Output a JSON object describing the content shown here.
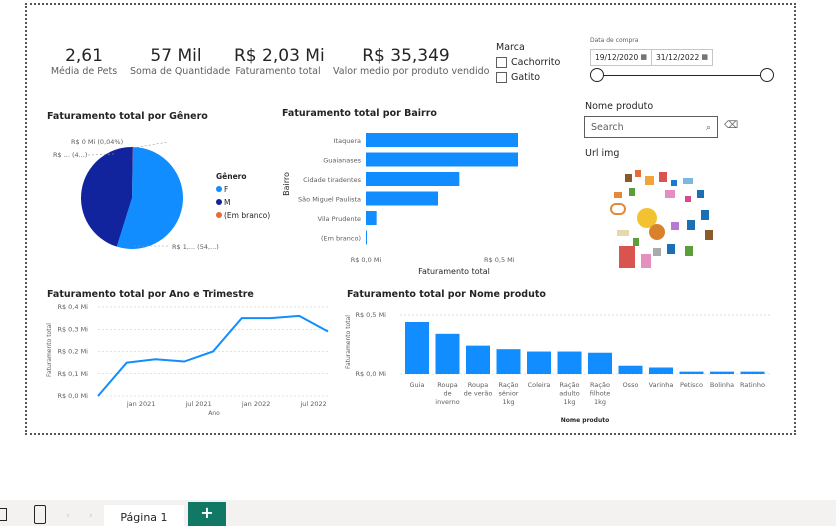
{
  "kpis": [
    {
      "value": "2,61",
      "label": "Média de Pets"
    },
    {
      "value": "57 Mil",
      "label": "Soma de Quantidade"
    },
    {
      "value": "R$ 2,03 Mi",
      "label": "Faturamento total"
    },
    {
      "value": "R$ 35,349",
      "label": "Valor medio por produto vendido"
    }
  ],
  "marca": {
    "title": "Marca",
    "options": [
      "Cachorrito",
      "Gatito"
    ]
  },
  "date_filter": {
    "label": "Data de compra",
    "start": "19/12/2020",
    "end": "31/12/2022"
  },
  "produto_filter": {
    "title": "Nome produto",
    "placeholder": "Search"
  },
  "url_img": {
    "title": "Url img"
  },
  "pie": {
    "title": "Faturamento total por Gênero",
    "legend_title": "Gênero",
    "labels": {
      "top": "R$ 0 Mi (0,04%)",
      "left": "R$ ... (4...)",
      "right": "R$ 1,... (54,...)"
    }
  },
  "bairro": {
    "title": "Faturamento total por Bairro",
    "ylabel": "Bairro",
    "xlabel": "Faturamento total"
  },
  "trimestre": {
    "title": "Faturamento total por Ano e Trimestre",
    "ylabel": "Faturamento total",
    "xlabel": "Ano"
  },
  "produto_chart": {
    "title": "Faturamento total por Nome produto",
    "ylabel": "Faturamento total",
    "xlabel": "Nome produto"
  },
  "bottom": {
    "page_tab": "Página 1",
    "add": "+"
  },
  "chart_data": [
    {
      "type": "pie",
      "title": "Faturamento total por Gênero",
      "legend": "right",
      "categories": [
        "F",
        "M",
        "(Em branco)"
      ],
      "values": [
        54.5,
        45.46,
        0.04
      ],
      "colors": [
        "#118DFF",
        "#12239E",
        "#E66C37"
      ]
    },
    {
      "type": "bar",
      "orientation": "horizontal",
      "title": "Faturamento total por Bairro",
      "xlabel": "Faturamento total",
      "ylabel": "Bairro",
      "categories": [
        "Itaquera",
        "Guaianases",
        "Cidade tiradentes",
        "São Miguel Paulista",
        "Vila Prudente",
        "(Em branco)"
      ],
      "values": [
        0.59,
        0.57,
        0.35,
        0.27,
        0.04,
        0.002
      ],
      "xlim": [
        0,
        0.6
      ],
      "ticks": [
        "R$ 0,0 Mi",
        "R$ 0,5 Mi"
      ],
      "tick_values": [
        0,
        0.5
      ],
      "color": "#118DFF"
    },
    {
      "type": "line",
      "title": "Faturamento total por Ano e Trimestre",
      "xlabel": "Ano",
      "ylabel": "Faturamento total",
      "values": [
        0.0,
        0.15,
        0.165,
        0.155,
        0.2,
        0.35,
        0.35,
        0.36,
        0.29
      ],
      "ylim": [
        0,
        0.4
      ],
      "yticks": [
        "R$ 0,0 Mi",
        "R$ 0,1 Mi",
        "R$ 0,2 Mi",
        "R$ 0,3 Mi",
        "R$ 0,4 Mi"
      ],
      "ytick_values": [
        0,
        0.1,
        0.2,
        0.3,
        0.4
      ],
      "xticks": [
        "jan 2021",
        "jul 2021",
        "jan 2022",
        "jul 2022"
      ],
      "xtick_positions": [
        1.5,
        3.5,
        5.5,
        7.5
      ],
      "color": "#118DFF"
    },
    {
      "type": "bar",
      "title": "Faturamento total por Nome produto",
      "xlabel": "Nome produto",
      "ylabel": "Faturamento total",
      "categories": [
        "Guia",
        "Roupa de inverno",
        "Roupa de verão",
        "Ração sênior 1kg",
        "Coleira",
        "Ração adulto 1kg",
        "Ração filhote 1kg",
        "Osso",
        "Varinha",
        "Petisco",
        "Bolinha",
        "Ratinho"
      ],
      "category_lines": [
        [
          "Guia"
        ],
        [
          "Roupa",
          "de",
          "inverno"
        ],
        [
          "Roupa",
          "de verão"
        ],
        [
          "Ração",
          "sênior",
          "1kg"
        ],
        [
          "Coleira"
        ],
        [
          "Ração",
          "adulto",
          "1kg"
        ],
        [
          "Ração",
          "filhote",
          "1kg"
        ],
        [
          "Osso"
        ],
        [
          "Varinha"
        ],
        [
          "Petisco"
        ],
        [
          "Bolinha"
        ],
        [
          "Ratinho"
        ]
      ],
      "values": [
        0.44,
        0.34,
        0.24,
        0.21,
        0.19,
        0.19,
        0.18,
        0.07,
        0.055,
        0.02,
        0.02,
        0.02
      ],
      "ylim": [
        0,
        0.55
      ],
      "yticks": [
        "R$ 0,0 Mi",
        "R$ 0,5 Mi"
      ],
      "ytick_values": [
        0,
        0.5
      ],
      "color": "#118DFF"
    }
  ]
}
